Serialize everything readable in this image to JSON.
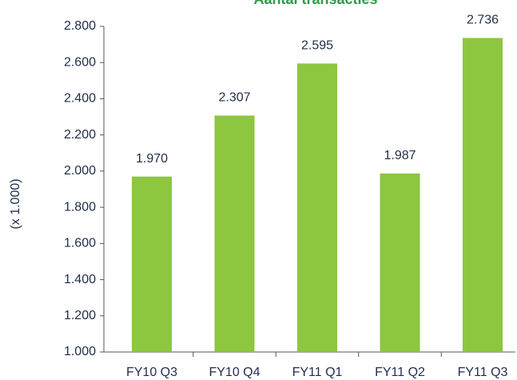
{
  "chart_data": {
    "type": "bar",
    "title": "Aantal transacties",
    "y_label": "(x 1.000)",
    "categories": [
      "FY10 Q3",
      "FY10 Q4",
      "FY11 Q1",
      "FY11 Q2",
      "FY11 Q3"
    ],
    "values": [
      1970,
      2307,
      2595,
      1987,
      2736
    ],
    "value_labels": [
      "1.970",
      "2.307",
      "2.595",
      "1.987",
      "2.736"
    ],
    "color": "#8dc63f",
    "ylim": [
      1000,
      2800
    ],
    "yticks": [
      {
        "value": 1000,
        "label": "1.000"
      },
      {
        "value": 1200,
        "label": "1.200"
      },
      {
        "value": 1400,
        "label": "1.400"
      },
      {
        "value": 1600,
        "label": "1.600"
      },
      {
        "value": 1800,
        "label": "1.800"
      },
      {
        "value": 2000,
        "label": "2.000"
      },
      {
        "value": 2200,
        "label": "2.200"
      },
      {
        "value": 2400,
        "label": "2.400"
      },
      {
        "value": 2600,
        "label": "2.600"
      },
      {
        "value": 2800,
        "label": "2.800"
      }
    ],
    "grid": false
  }
}
